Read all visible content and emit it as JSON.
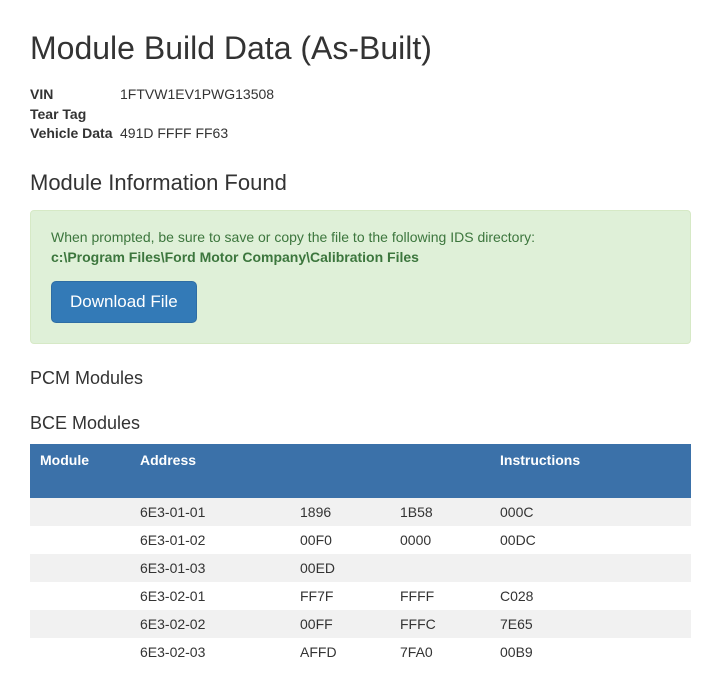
{
  "page_title": "Module Build Data (As-Built)",
  "vehicle_info": {
    "vin_label": "VIN",
    "vin_value": "1FTVW1EV1PWG13508",
    "tear_tag_label": "Tear Tag",
    "tear_tag_value": "",
    "vehicle_data_label": "Vehicle Data",
    "vehicle_data_value": "491D FFFF FF63"
  },
  "module_info_heading": "Module Information Found",
  "alert": {
    "message": "When prompted, be sure to save or copy the file to the following IDS directory:",
    "path": "c:\\Program Files\\Ford Motor Company\\Calibration Files",
    "button_label": "Download File"
  },
  "sections": {
    "pcm_heading": "PCM Modules",
    "bce_heading": "BCE Modules"
  },
  "bce_table": {
    "columns": {
      "module": "Module",
      "address": "Address",
      "d1": "",
      "d2": "",
      "instructions": "Instructions"
    },
    "rows": [
      {
        "module": "",
        "address": "6E3-01-01",
        "d1": "1896",
        "d2": "1B58",
        "instr": "000C"
      },
      {
        "module": "",
        "address": "6E3-01-02",
        "d1": "00F0",
        "d2": "0000",
        "instr": "00DC"
      },
      {
        "module": "",
        "address": "6E3-01-03",
        "d1": "00ED",
        "d2": "",
        "instr": ""
      },
      {
        "module": "",
        "address": "6E3-02-01",
        "d1": "FF7F",
        "d2": "FFFF",
        "instr": "C028"
      },
      {
        "module": "",
        "address": "6E3-02-02",
        "d1": "00FF",
        "d2": "FFFC",
        "instr": "7E65"
      },
      {
        "module": "",
        "address": "6E3-02-03",
        "d1": "AFFD",
        "d2": "7FA0",
        "instr": "00B9"
      }
    ],
    "header_bg": "#3b71a9",
    "row_stripe_bg": "#f1f1f1"
  }
}
